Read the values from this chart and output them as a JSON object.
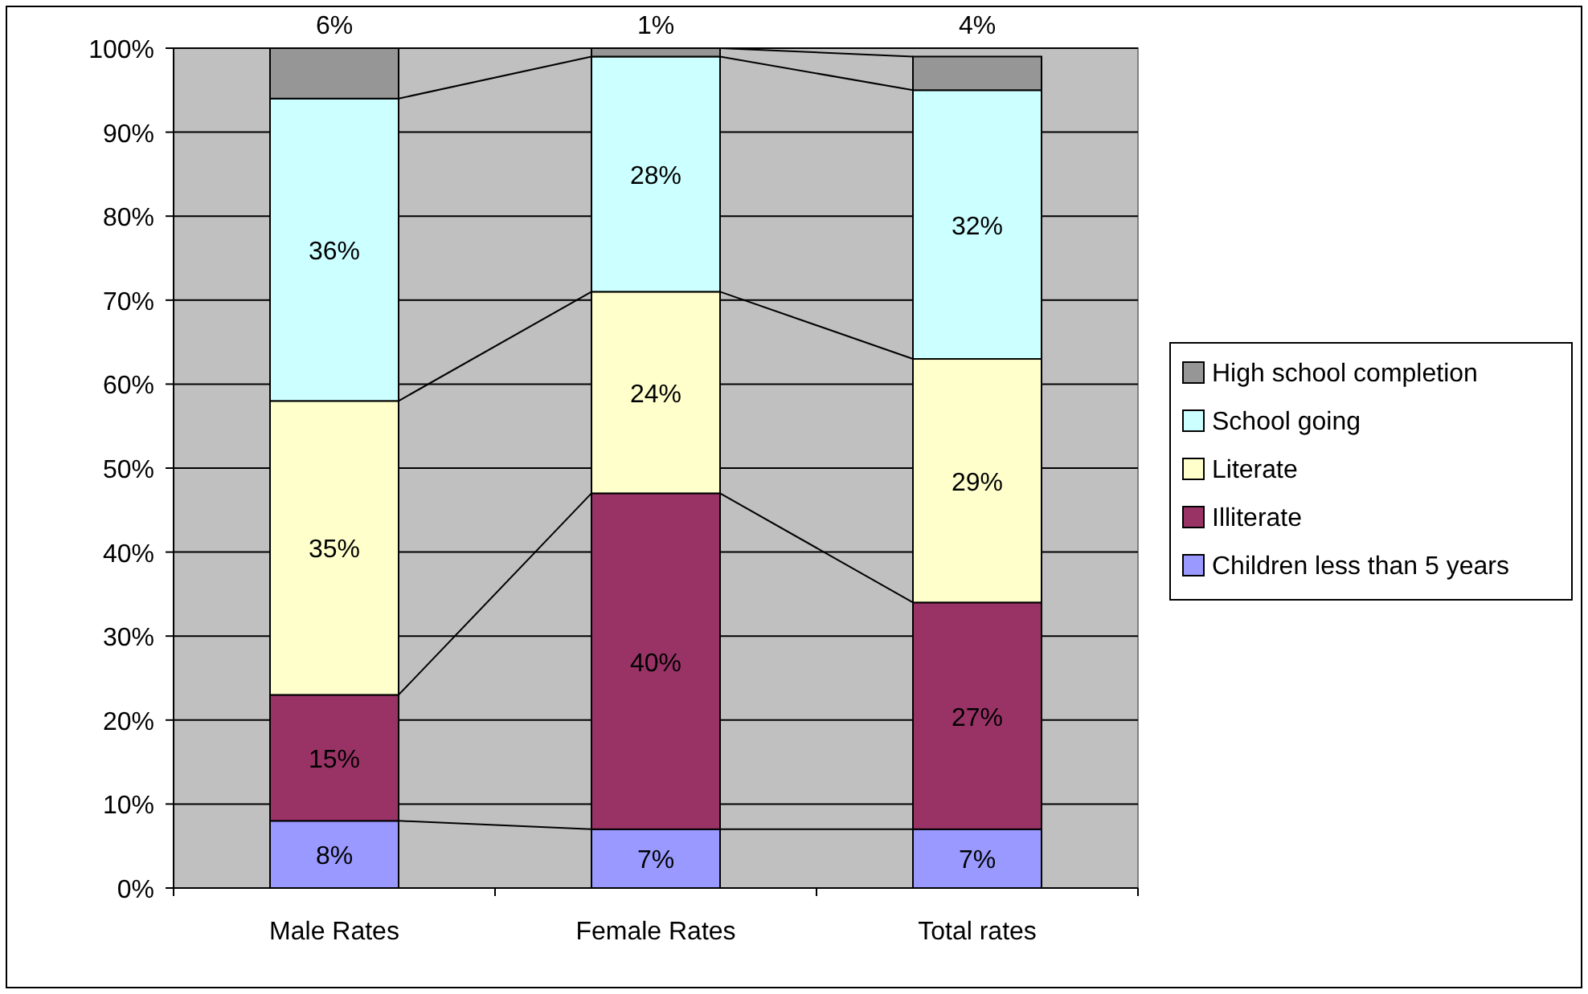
{
  "chart_data": {
    "type": "bar",
    "stacked": true,
    "categories": [
      "Male Rates",
      "Female Rates",
      "Total rates"
    ],
    "series": [
      {
        "name": "Children less than 5 years",
        "color": "#9999ff",
        "values": [
          8,
          7,
          7
        ],
        "value_labels": [
          "8%",
          "7%",
          "7%"
        ]
      },
      {
        "name": "Illiterate",
        "color": "#993366",
        "values": [
          15,
          40,
          27
        ],
        "value_labels": [
          "15%",
          "40%",
          "27%"
        ]
      },
      {
        "name": "Literate",
        "color": "#ffffcc",
        "values": [
          35,
          24,
          29
        ],
        "value_labels": [
          "35%",
          "24%",
          "29%"
        ]
      },
      {
        "name": "School going",
        "color": "#ccffff",
        "values": [
          36,
          28,
          32
        ],
        "value_labels": [
          "36%",
          "28%",
          "32%"
        ]
      },
      {
        "name": "High school completion",
        "color": "#969696",
        "values": [
          6,
          1,
          4
        ],
        "value_labels": [
          "6%",
          "1%",
          "4%"
        ]
      }
    ],
    "ylim": [
      0,
      100
    ],
    "yticks": [
      {
        "value": 0,
        "label": "0%"
      },
      {
        "value": 10,
        "label": "10%"
      },
      {
        "value": 20,
        "label": "20%"
      },
      {
        "value": 30,
        "label": "30%"
      },
      {
        "value": 40,
        "label": "40%"
      },
      {
        "value": 50,
        "label": "50%"
      },
      {
        "value": 60,
        "label": "60%"
      },
      {
        "value": 70,
        "label": "70%"
      },
      {
        "value": 80,
        "label": "80%"
      },
      {
        "value": 90,
        "label": "90%"
      },
      {
        "value": 100,
        "label": "100%"
      }
    ],
    "grid": "y",
    "legend": "right"
  }
}
